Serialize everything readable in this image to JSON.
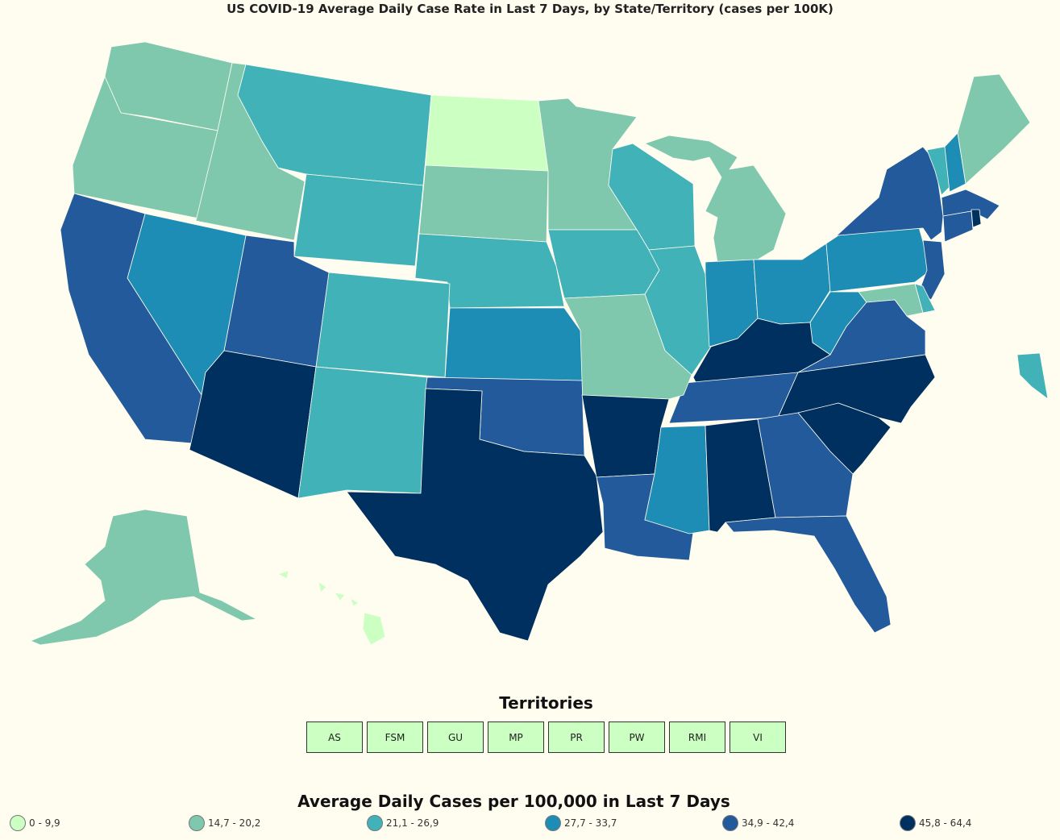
{
  "title": "US COVID-19 Average Daily Case Rate in Last 7 Days, by State/Territory (cases per 100K)",
  "territories_title": "Territories",
  "territories": [
    "AS",
    "FSM",
    "GU",
    "MP",
    "PR",
    "PW",
    "RMI",
    "VI"
  ],
  "legend_title": "Average Daily Cases per 100,000 in Last 7 Days",
  "legend": [
    {
      "label": "0 - 9,9",
      "color": "#ccffc2"
    },
    {
      "label": "14,7 - 20,2",
      "color": "#7fc8ae"
    },
    {
      "label": "21,1 - 26,9",
      "color": "#41b2b8"
    },
    {
      "label": "27,7 - 33,7",
      "color": "#1e8db5"
    },
    {
      "label": "34,9 - 42,4",
      "color": "#225a9b"
    },
    {
      "label": "45,8 - 64,4",
      "color": "#003060"
    }
  ],
  "territory_color": "#ccffc2",
  "states": {
    "WA": 1,
    "OR": 1,
    "ID": 1,
    "MT": 2,
    "WY": 2,
    "ND": 0,
    "SD": 1,
    "MN": 1,
    "WI": 2,
    "MI": 1,
    "ME": 1,
    "VT": 2,
    "NH": 3,
    "MA": 4,
    "RI": 5,
    "CT": 4,
    "NY": 4,
    "NJ": 4,
    "PA": 3,
    "DE": 2,
    "MD": 1,
    "VA": 4,
    "WV": 3,
    "OH": 3,
    "IN": 3,
    "IL": 2,
    "IA": 2,
    "NE": 2,
    "KS": 3,
    "CO": 2,
    "UT": 4,
    "NV": 3,
    "CA": 4,
    "AZ": 5,
    "NM": 2,
    "TX": 5,
    "OK": 4,
    "MO": 1,
    "AR": 5,
    "LA": 4,
    "MS": 3,
    "AL": 5,
    "TN": 4,
    "KY": 5,
    "GA": 4,
    "FL": 4,
    "SC": 5,
    "NC": 5,
    "AK": 1,
    "HI": 0,
    "DC": 2
  }
}
